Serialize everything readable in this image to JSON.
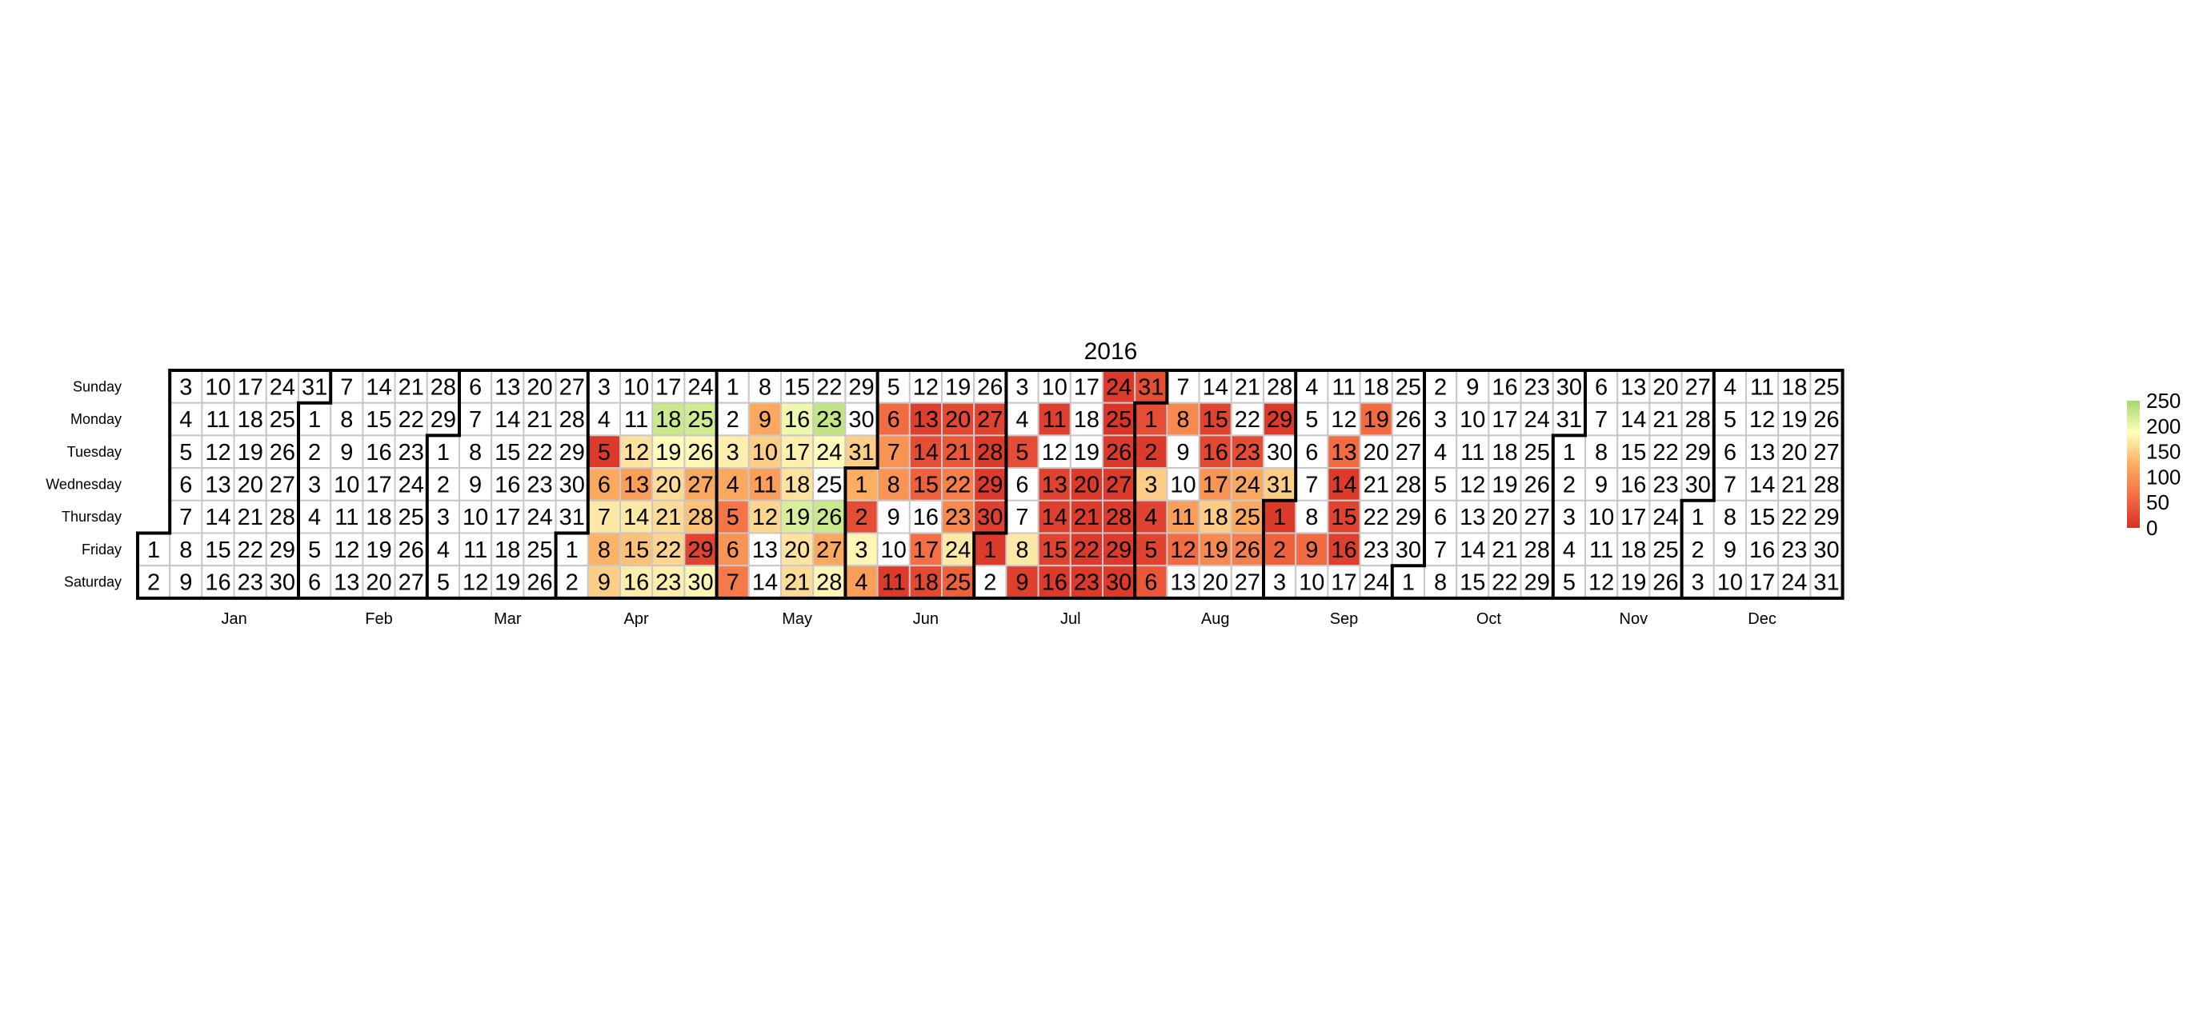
{
  "chart_data": {
    "type": "heatmap",
    "title": "2016",
    "year": 2016,
    "weekday_labels": [
      "Sunday",
      "Monday",
      "Tuesday",
      "Wednesday",
      "Thursday",
      "Friday",
      "Saturday"
    ],
    "month_labels": [
      "Jan",
      "Feb",
      "Mar",
      "Apr",
      "May",
      "Jun",
      "Jul",
      "Aug",
      "Sep",
      "Oct",
      "Nov",
      "Dec"
    ],
    "color_scale": {
      "min": 0,
      "max": 250,
      "stops": [
        {
          "value": 0,
          "color": "#d73027"
        },
        {
          "value": 62.5,
          "color": "#f46d43"
        },
        {
          "value": 125,
          "color": "#fdae61"
        },
        {
          "value": 187.5,
          "color": "#ffffbf"
        },
        {
          "value": 250,
          "color": "#a6d96a"
        }
      ],
      "legend_ticks": [
        {
          "value": 0,
          "label": "0"
        },
        {
          "value": 50,
          "label": "50"
        },
        {
          "value": 100,
          "label": "100"
        },
        {
          "value": 150,
          "label": "150"
        },
        {
          "value": 200,
          "label": "200"
        },
        {
          "value": 250,
          "label": "250"
        }
      ],
      "legend_position": "right"
    },
    "values": {
      "2016-04-05": 10,
      "2016-04-06": 120,
      "2016-04-07": 170,
      "2016-04-08": 130,
      "2016-04-09": 150,
      "2016-04-12": 165,
      "2016-04-13": 110,
      "2016-04-14": 170,
      "2016-04-15": 140,
      "2016-04-16": 175,
      "2016-04-18": 225,
      "2016-04-19": 185,
      "2016-04-20": 160,
      "2016-04-21": 160,
      "2016-04-22": 155,
      "2016-04-23": 175,
      "2016-04-25": 220,
      "2016-04-26": 180,
      "2016-04-27": 120,
      "2016-04-28": 140,
      "2016-04-29": 20,
      "2016-04-30": 180,
      "2016-05-03": 175,
      "2016-05-04": 120,
      "2016-05-05": 70,
      "2016-05-06": 100,
      "2016-05-07": 75,
      "2016-05-09": 120,
      "2016-05-10": 150,
      "2016-05-11": 110,
      "2016-05-12": 155,
      "2016-05-16": 200,
      "2016-05-17": 175,
      "2016-05-18": 165,
      "2016-05-19": 215,
      "2016-05-20": 165,
      "2016-05-21": 160,
      "2016-05-23": 230,
      "2016-05-24": 185,
      "2016-05-26": 225,
      "2016-05-27": 120,
      "2016-05-28": 180,
      "2016-05-31": 150,
      "2016-06-01": 125,
      "2016-06-02": 30,
      "2016-06-03": 180,
      "2016-06-04": 110,
      "2016-06-06": 60,
      "2016-06-07": 100,
      "2016-06-08": 100,
      "2016-06-11": 10,
      "2016-06-13": 15,
      "2016-06-14": 30,
      "2016-06-15": 50,
      "2016-06-17": 65,
      "2016-06-18": 25,
      "2016-06-20": 25,
      "2016-06-21": 40,
      "2016-06-22": 80,
      "2016-06-23": 90,
      "2016-06-24": 170,
      "2016-06-25": 50,
      "2016-06-27": 20,
      "2016-06-28": 10,
      "2016-06-29": 10,
      "2016-06-30": 15,
      "2016-07-01": 10,
      "2016-07-05": 30,
      "2016-07-08": 170,
      "2016-07-09": 15,
      "2016-07-11": 15,
      "2016-07-13": 20,
      "2016-07-14": 15,
      "2016-07-15": 20,
      "2016-07-16": 10,
      "2016-07-20": 10,
      "2016-07-21": 10,
      "2016-07-22": 10,
      "2016-07-23": 10,
      "2016-07-24": 10,
      "2016-07-25": 5,
      "2016-07-26": 10,
      "2016-07-27": 10,
      "2016-07-28": 10,
      "2016-07-29": 10,
      "2016-07-30": 10,
      "2016-07-31": 30,
      "2016-08-01": 30,
      "2016-08-02": 10,
      "2016-08-03": 150,
      "2016-08-04": 20,
      "2016-08-05": 20,
      "2016-08-06": 40,
      "2016-08-08": 90,
      "2016-08-11": 110,
      "2016-08-12": 60,
      "2016-08-15": 20,
      "2016-08-16": 25,
      "2016-08-17": 100,
      "2016-08-18": 150,
      "2016-08-19": 90,
      "2016-08-23": 30,
      "2016-08-24": 120,
      "2016-08-25": 120,
      "2016-08-26": 80,
      "2016-08-29": 10,
      "2016-08-31": 150,
      "2016-09-01": 10,
      "2016-09-02": 50,
      "2016-09-09": 60,
      "2016-09-13": 60,
      "2016-09-14": 10,
      "2016-09-15": 20,
      "2016-09-16": 15,
      "2016-09-19": 60
    }
  }
}
